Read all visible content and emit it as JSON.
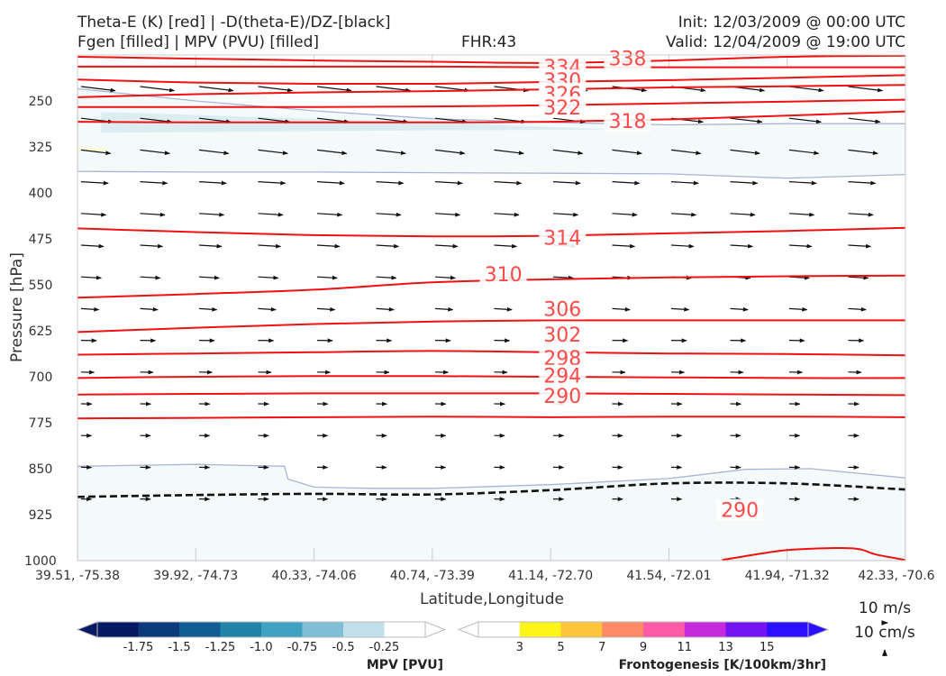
{
  "header": {
    "title_left_1": "Theta-E (K) [red] | -D(theta-E)/DZ-[black]",
    "title_left_2": "Fgen [filled] | MPV (PVU) [filled]",
    "title_center": "FHR:43",
    "title_right_1": "Init: 12/03/2009 @ 00:00 UTC",
    "title_right_2": "Valid: 12/04/2009 @ 19:00 UTC"
  },
  "chart_data": {
    "type": "cross-section",
    "xlabel": "Latitude,Longitude",
    "ylabel": "Pressure [hPa]",
    "ylim": [
      1000,
      175
    ],
    "y_ticks": [
      250,
      325,
      400,
      475,
      550,
      625,
      700,
      775,
      850,
      925,
      1000
    ],
    "x_ticks": [
      "39.51, -75.38",
      "39.92, -74.73",
      "40.33, -74.06",
      "40.74, -73.39",
      "41.14, -72.70",
      "41.54, -72.01",
      "41.94, -71.32",
      "42.33, -70.6"
    ],
    "contour_labels": [
      {
        "value": "338",
        "x": 4.65,
        "p": 180
      },
      {
        "value": "334",
        "x": 4.1,
        "p": 194
      },
      {
        "value": "330",
        "x": 4.1,
        "p": 216
      },
      {
        "value": "326",
        "x": 4.1,
        "p": 238
      },
      {
        "value": "322",
        "x": 4.1,
        "p": 260
      },
      {
        "value": "318",
        "x": 4.65,
        "p": 282
      },
      {
        "value": "314",
        "x": 4.1,
        "p": 473
      },
      {
        "value": "310",
        "x": 3.6,
        "p": 532
      },
      {
        "value": "306",
        "x": 4.1,
        "p": 589
      },
      {
        "value": "302",
        "x": 4.1,
        "p": 631
      },
      {
        "value": "298",
        "x": 4.1,
        "p": 669
      },
      {
        "value": "294",
        "x": 4.1,
        "p": 698
      },
      {
        "value": "290",
        "x": 4.1,
        "p": 731
      },
      {
        "value": "290",
        "x": 5.6,
        "p": 917
      }
    ],
    "theta_e_lines": [
      {
        "x": [
          0,
          1,
          2,
          3,
          4,
          5,
          6,
          7
        ],
        "p": [
          178,
          181,
          184,
          186,
          188,
          184,
          178,
          176
        ]
      },
      {
        "x": [
          0,
          1,
          2,
          3,
          4,
          5,
          6,
          7
        ],
        "p": [
          194,
          194,
          194,
          194,
          195,
          195,
          195,
          195
        ]
      },
      {
        "x": [
          0,
          1,
          2,
          3,
          4,
          5,
          6,
          7
        ],
        "p": [
          215,
          220,
          222,
          222,
          219,
          216,
          212,
          208
        ]
      },
      {
        "x": [
          0,
          1,
          2,
          3,
          4,
          5,
          6,
          7
        ],
        "p": [
          244,
          239,
          236,
          234,
          231,
          228,
          226,
          224
        ]
      },
      {
        "x": [
          0,
          1,
          2,
          3,
          4,
          5,
          6,
          7
        ],
        "p": [
          260,
          260,
          260,
          259,
          257,
          254,
          251,
          248
        ]
      },
      {
        "x": [
          0,
          1,
          2,
          3,
          4,
          5,
          6,
          7
        ],
        "p": [
          284,
          285,
          285,
          285,
          284,
          280,
          274,
          267
        ]
      },
      {
        "x": [
          0,
          1,
          2,
          3,
          4,
          5,
          6,
          7
        ],
        "p": [
          458,
          464,
          469,
          471,
          470,
          466,
          462,
          457
        ]
      },
      {
        "x": [
          0,
          1,
          2,
          3,
          4,
          5,
          6,
          7
        ],
        "p": [
          571,
          565,
          558,
          546,
          541,
          538,
          536,
          535
        ]
      },
      {
        "x": [
          0,
          1,
          2,
          3,
          4,
          5,
          6,
          7
        ],
        "p": [
          627,
          620,
          614,
          610,
          608,
          608,
          608,
          608
        ]
      },
      {
        "x": [
          0,
          1,
          2,
          3,
          4,
          5,
          6,
          7
        ],
        "p": [
          664,
          662,
          660,
          658,
          660,
          662,
          663,
          665
        ]
      },
      {
        "x": [
          0,
          1,
          2,
          3,
          4,
          5,
          6,
          7
        ],
        "p": [
          702,
          700,
          699,
          699,
          700,
          701,
          702,
          702
        ]
      },
      {
        "x": [
          0,
          1,
          2,
          3,
          4,
          5,
          6,
          7
        ],
        "p": [
          729,
          728,
          727,
          727,
          727,
          728,
          729,
          730
        ]
      },
      {
        "x": [
          0,
          1,
          2,
          3,
          4,
          5,
          6,
          7
        ],
        "p": [
          768,
          767,
          766,
          765,
          766,
          765,
          765,
          766
        ]
      },
      {
        "x": [
          5.45,
          5.8,
          6.05,
          6.55,
          6.75,
          7
        ],
        "p": [
          999,
          988,
          982,
          980,
          990,
          999
        ]
      }
    ],
    "dthetae_dz_line": {
      "x": [
        0,
        1,
        2,
        3,
        4,
        5,
        6,
        7
      ],
      "p": [
        896,
        893,
        891,
        892,
        885,
        874,
        874,
        884
      ]
    },
    "mpv_region_upper": {
      "x": [
        0,
        1,
        2,
        3,
        4,
        5,
        6,
        7,
        7,
        6,
        5,
        4,
        3,
        2,
        1,
        0
      ],
      "p": [
        230,
        250,
        266,
        279,
        285,
        289,
        287,
        287,
        370,
        376,
        369,
        368,
        367,
        366,
        366,
        365
      ],
      "value": -0.25
    },
    "mpv_region_upper_dark": {
      "x": [
        0.2,
        1.5,
        3,
        4.2,
        4.6,
        4.2,
        3,
        1.5,
        0.2
      ],
      "p": [
        268,
        276,
        285,
        294,
        297,
        297,
        298,
        300,
        302
      ],
      "value": -0.5
    },
    "mpv_region_lower": {
      "x": [
        0,
        1,
        1.75,
        1.78,
        2,
        2.5,
        3,
        4,
        5,
        5.65,
        6.2,
        7,
        7,
        0
      ],
      "p": [
        846,
        843,
        846,
        867,
        880,
        882,
        882,
        876,
        866,
        851,
        850,
        865,
        1000,
        1000
      ],
      "value": -0.25
    },
    "fgen_region": {
      "x": [
        0,
        0.25,
        0.25,
        0
      ],
      "p": [
        327,
        327,
        332,
        332
      ],
      "value": 3
    },
    "wind_vector_grid": {
      "columns": 15,
      "rows": 14,
      "note": "along-section wind vectors (black arrows), strongest aloft"
    },
    "reference_vectors": [
      {
        "label": "10 m/s",
        "direction": "horizontal"
      },
      {
        "label": "10 cm/s",
        "direction": "vertical"
      }
    ],
    "colorbars": [
      {
        "name": "MPV [PVU]",
        "ticks": [
          "-1.75",
          "-1.5",
          "-1.25",
          "-1.0",
          "-0.75",
          "-0.5",
          "-0.25"
        ],
        "colors": [
          "#061a63",
          "#0b3a7d",
          "#115c94",
          "#1f84a8",
          "#40a2c2",
          "#7fbfd6",
          "#c0dfe8",
          "#ffffff"
        ]
      },
      {
        "name": "Frontogenesis [K/100km/3hr]",
        "ticks": [
          "3",
          "5",
          "7",
          "9",
          "11",
          "13",
          "15"
        ],
        "colors": [
          "#ffffff",
          "#fff41a",
          "#ffc43a",
          "#ff8866",
          "#ff5aa6",
          "#c42adb",
          "#7414f0",
          "#2a10ff"
        ]
      }
    ]
  }
}
